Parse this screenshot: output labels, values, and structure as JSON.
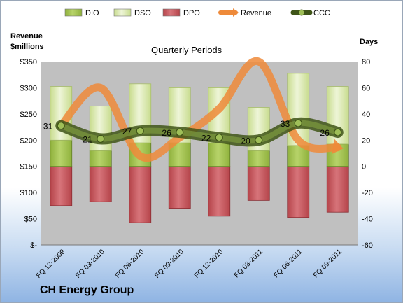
{
  "header": {
    "left_axis_title": [
      "Revenue",
      "$millions"
    ],
    "right_axis_title": "Days",
    "subtitle": "Quarterly Periods",
    "company": "CH Energy Group"
  },
  "colors": {
    "dio": "#8fb13c",
    "dso": "#d7e7a6",
    "dpo": "#b5444a",
    "revenue": "#ee8a3a",
    "ccc": "#5e7a26",
    "plot_bg": "#c0c0c0"
  },
  "chart_data": {
    "type": "bar",
    "title": "Quarterly Periods",
    "xlabel": "",
    "ylabel": "Revenue $millions",
    "y2label": "Days",
    "categories": [
      "FQ 12-2009",
      "FQ 03-2010",
      "FQ 06-2010",
      "FQ 09-2010",
      "FQ 12-2010",
      "FQ 03-2011",
      "FQ 06-2011",
      "FQ 09-2011"
    ],
    "series": [
      {
        "name": "DIO",
        "type": "stacked-bar",
        "axis": "right",
        "values": [
          20,
          12,
          18,
          18,
          18,
          12,
          16,
          17
        ]
      },
      {
        "name": "DSO",
        "type": "stacked-bar",
        "axis": "right",
        "values": [
          41,
          34,
          45,
          42,
          42,
          33,
          55,
          44
        ]
      },
      {
        "name": "DPO",
        "type": "stacked-bar",
        "axis": "right",
        "values": [
          -30,
          -27,
          -43,
          -32,
          -38,
          -26,
          -39,
          -35
        ]
      },
      {
        "name": "Revenue",
        "type": "line",
        "axis": "left",
        "values": [
          228,
          300,
          170,
          205,
          260,
          350,
          200,
          186
        ]
      },
      {
        "name": "CCC",
        "type": "line",
        "axis": "right",
        "values": [
          31,
          21,
          27,
          26,
          22,
          20,
          33,
          26
        ]
      }
    ],
    "ccc_labels": [
      "31",
      "21",
      "27",
      "26",
      "22",
      "20",
      "33",
      "26"
    ],
    "y_left": {
      "min": 0,
      "max": 350,
      "ticks": [
        "$-",
        "$50",
        "$100",
        "$150",
        "$200",
        "$250",
        "$300",
        "$350"
      ]
    },
    "y_right": {
      "min": -60,
      "max": 80,
      "ticks": [
        "-60",
        "-40",
        "-20",
        "0",
        "20",
        "40",
        "60",
        "80"
      ]
    },
    "grid": false,
    "legend_position": "top",
    "legend": [
      "DIO",
      "DSO",
      "DPO",
      "Revenue",
      "CCC"
    ]
  }
}
